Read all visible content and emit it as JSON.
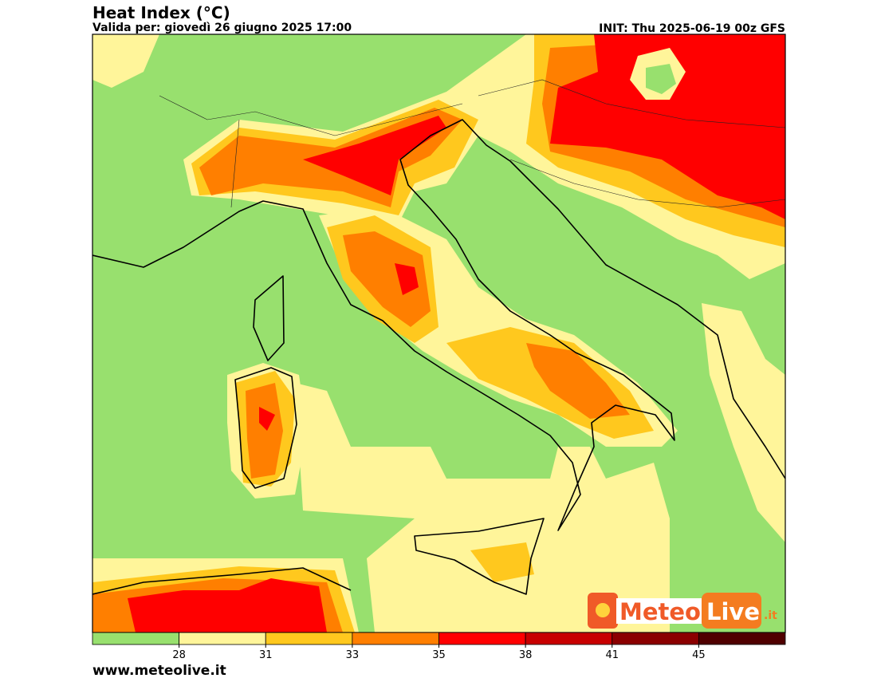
{
  "header": {
    "title": "Heat Index (°C)",
    "valid": "Valida per: giovedì 26 giugno 2025 17:00",
    "init": "INIT: Thu 2025-06-19 00z GFS"
  },
  "colorbar": {
    "colors": [
      "#98e06e",
      "#fff59a",
      "#ffc81e",
      "#ff7f00",
      "#ff0000",
      "#c80000",
      "#8b0000",
      "#500000"
    ],
    "ticks": [
      28,
      31,
      33,
      35,
      38,
      41,
      45
    ]
  },
  "logo": {
    "part1": "Meteo",
    "part2": "Live",
    "part3": ".it"
  },
  "footer": "www.meteolive.it"
}
